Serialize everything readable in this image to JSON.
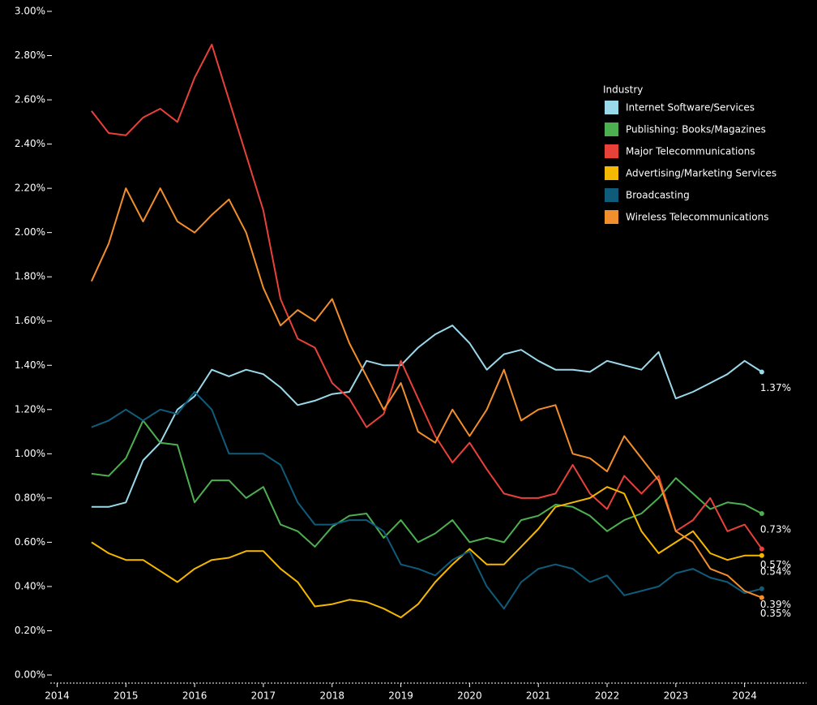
{
  "chart_data": {
    "type": "line",
    "legend_title": "Industry",
    "legend_position": "upper right",
    "xlim": [
      2013.9,
      2024.9
    ],
    "xticks": [
      2014,
      2015,
      2016,
      2017,
      2018,
      2019,
      2020,
      2021,
      2022,
      2023,
      2024
    ],
    "ylim": [
      0,
      3
    ],
    "yticks": [
      {
        "value": 0,
        "label": "0.00%"
      },
      {
        "value": 0.2,
        "label": "0.20%"
      },
      {
        "value": 0.4,
        "label": "0.40%"
      },
      {
        "value": 0.6,
        "label": "0.60%"
      },
      {
        "value": 0.8,
        "label": "0.80%"
      },
      {
        "value": 1.0,
        "label": "1.00%"
      },
      {
        "value": 1.2,
        "label": "1.20%"
      },
      {
        "value": 1.4,
        "label": "1.40%"
      },
      {
        "value": 1.6,
        "label": "1.60%"
      },
      {
        "value": 1.8,
        "label": "1.80%"
      },
      {
        "value": 2.0,
        "label": "2.00%"
      },
      {
        "value": 2.2,
        "label": "2.20%"
      },
      {
        "value": 2.4,
        "label": "2.40%"
      },
      {
        "value": 2.6,
        "label": "2.60%"
      },
      {
        "value": 2.8,
        "label": "2.80%"
      },
      {
        "value": 3.0,
        "label": "3.00%"
      }
    ],
    "x": [
      2014.5,
      2014.75,
      2015,
      2015.25,
      2015.5,
      2015.75,
      2016,
      2016.25,
      2016.5,
      2016.75,
      2017,
      2017.25,
      2017.5,
      2017.75,
      2018,
      2018.25,
      2018.5,
      2018.75,
      2019,
      2019.25,
      2019.5,
      2019.75,
      2020,
      2020.25,
      2020.5,
      2020.75,
      2021,
      2021.25,
      2021.5,
      2021.75,
      2022,
      2022.25,
      2022.5,
      2022.75,
      2023,
      2023.25,
      2023.5,
      2023.75,
      2024,
      2024.25
    ],
    "series": [
      {
        "name": "Internet Software/Services",
        "color": "#9ad9ea",
        "values": [
          0.76,
          0.76,
          0.78,
          0.97,
          1.05,
          1.2,
          1.26,
          1.38,
          1.35,
          1.38,
          1.36,
          1.3,
          1.22,
          1.24,
          1.27,
          1.28,
          1.42,
          1.4,
          1.4,
          1.48,
          1.54,
          1.58,
          1.5,
          1.38,
          1.45,
          1.47,
          1.42,
          1.38,
          1.38,
          1.37,
          1.42,
          1.4,
          1.38,
          1.46,
          1.25,
          1.28,
          1.32,
          1.36,
          1.42,
          1.37
        ],
        "value_labels": [
          null,
          null,
          null,
          null,
          null,
          null,
          null,
          null,
          null,
          null,
          null,
          null,
          null,
          null,
          null,
          null,
          null,
          null,
          null,
          null,
          null,
          null,
          null,
          null,
          null,
          null,
          null,
          null,
          null,
          null,
          null,
          null,
          null,
          null,
          null,
          null,
          null,
          null,
          null,
          "1.37%"
        ]
      },
      {
        "name": "Publishing: Books/Magazines",
        "color": "#4caf50",
        "values": [
          0.91,
          0.9,
          0.98,
          1.15,
          1.05,
          1.04,
          0.78,
          0.88,
          0.88,
          0.8,
          0.85,
          0.68,
          0.65,
          0.58,
          0.67,
          0.72,
          0.73,
          0.62,
          0.7,
          0.6,
          0.64,
          0.7,
          0.6,
          0.62,
          0.6,
          0.7,
          0.72,
          0.77,
          0.76,
          0.72,
          0.65,
          0.7,
          0.73,
          0.8,
          0.89,
          0.82,
          0.75,
          0.78,
          0.77,
          0.73
        ],
        "value_labels": [
          null,
          null,
          null,
          null,
          null,
          null,
          null,
          null,
          null,
          null,
          null,
          null,
          null,
          null,
          null,
          null,
          null,
          null,
          null,
          null,
          null,
          null,
          null,
          null,
          null,
          null,
          null,
          null,
          null,
          null,
          null,
          null,
          null,
          null,
          null,
          null,
          null,
          null,
          null,
          "0.73%"
        ]
      },
      {
        "name": "Major Telecommunications",
        "color": "#e8413a",
        "values": [
          2.55,
          2.45,
          2.44,
          2.52,
          2.56,
          2.5,
          2.7,
          2.85,
          2.6,
          2.35,
          2.1,
          1.7,
          1.52,
          1.48,
          1.32,
          1.25,
          1.12,
          1.18,
          1.42,
          1.25,
          1.08,
          0.96,
          1.05,
          0.93,
          0.82,
          0.8,
          0.8,
          0.82,
          0.95,
          0.82,
          0.75,
          0.9,
          0.82,
          0.9,
          0.65,
          0.7,
          0.8,
          0.65,
          0.68,
          0.57
        ],
        "value_labels": [
          null,
          null,
          null,
          null,
          null,
          null,
          null,
          null,
          null,
          null,
          null,
          null,
          null,
          null,
          null,
          null,
          null,
          null,
          null,
          null,
          null,
          null,
          null,
          null,
          null,
          null,
          null,
          null,
          null,
          null,
          null,
          null,
          null,
          null,
          null,
          null,
          null,
          null,
          null,
          "0.57%"
        ]
      },
      {
        "name": "Advertising/Marketing Services",
        "color": "#f5b800",
        "values": [
          0.6,
          0.55,
          0.52,
          0.52,
          0.47,
          0.42,
          0.48,
          0.52,
          0.53,
          0.56,
          0.56,
          0.48,
          0.42,
          0.31,
          0.32,
          0.34,
          0.33,
          0.3,
          0.26,
          0.32,
          0.42,
          0.5,
          0.57,
          0.5,
          0.5,
          0.58,
          0.66,
          0.76,
          0.78,
          0.8,
          0.85,
          0.82,
          0.65,
          0.55,
          0.6,
          0.65,
          0.55,
          0.52,
          0.54,
          0.54
        ],
        "value_labels": [
          null,
          null,
          null,
          null,
          null,
          null,
          null,
          null,
          null,
          null,
          null,
          null,
          null,
          null,
          null,
          null,
          null,
          null,
          null,
          null,
          null,
          null,
          null,
          null,
          null,
          null,
          null,
          null,
          null,
          null,
          null,
          null,
          null,
          null,
          null,
          null,
          null,
          null,
          null,
          "0.54%"
        ]
      },
      {
        "name": "Broadcasting",
        "color": "#0f5b7a",
        "values": [
          1.12,
          1.15,
          1.2,
          1.15,
          1.2,
          1.18,
          1.28,
          1.2,
          1.0,
          1.0,
          1.0,
          0.95,
          0.78,
          0.68,
          0.68,
          0.7,
          0.7,
          0.65,
          0.5,
          0.48,
          0.45,
          0.52,
          0.56,
          0.4,
          0.3,
          0.42,
          0.48,
          0.5,
          0.48,
          0.42,
          0.45,
          0.36,
          0.38,
          0.4,
          0.46,
          0.48,
          0.44,
          0.42,
          0.37,
          0.39
        ],
        "value_labels": [
          null,
          null,
          null,
          null,
          null,
          null,
          null,
          null,
          null,
          null,
          null,
          null,
          null,
          null,
          null,
          null,
          null,
          null,
          null,
          null,
          null,
          null,
          null,
          null,
          null,
          null,
          null,
          null,
          null,
          null,
          null,
          null,
          null,
          null,
          null,
          null,
          null,
          null,
          null,
          "0.39%"
        ]
      },
      {
        "name": "Wireless Telecommunications",
        "color": "#f28e2b",
        "values": [
          1.78,
          1.95,
          2.2,
          2.05,
          2.2,
          2.05,
          2.0,
          2.08,
          2.15,
          2.0,
          1.75,
          1.58,
          1.65,
          1.6,
          1.7,
          1.5,
          1.35,
          1.2,
          1.32,
          1.1,
          1.05,
          1.2,
          1.08,
          1.2,
          1.38,
          1.15,
          1.2,
          1.22,
          1.0,
          0.98,
          0.92,
          1.08,
          0.98,
          0.88,
          0.65,
          0.6,
          0.48,
          0.45,
          0.38,
          0.35
        ],
        "value_labels": [
          null,
          null,
          null,
          null,
          null,
          null,
          null,
          null,
          null,
          null,
          null,
          null,
          null,
          null,
          null,
          null,
          null,
          null,
          null,
          null,
          null,
          null,
          null,
          null,
          null,
          null,
          null,
          null,
          null,
          null,
          null,
          null,
          null,
          null,
          null,
          null,
          null,
          null,
          null,
          "0.35%"
        ]
      }
    ]
  }
}
